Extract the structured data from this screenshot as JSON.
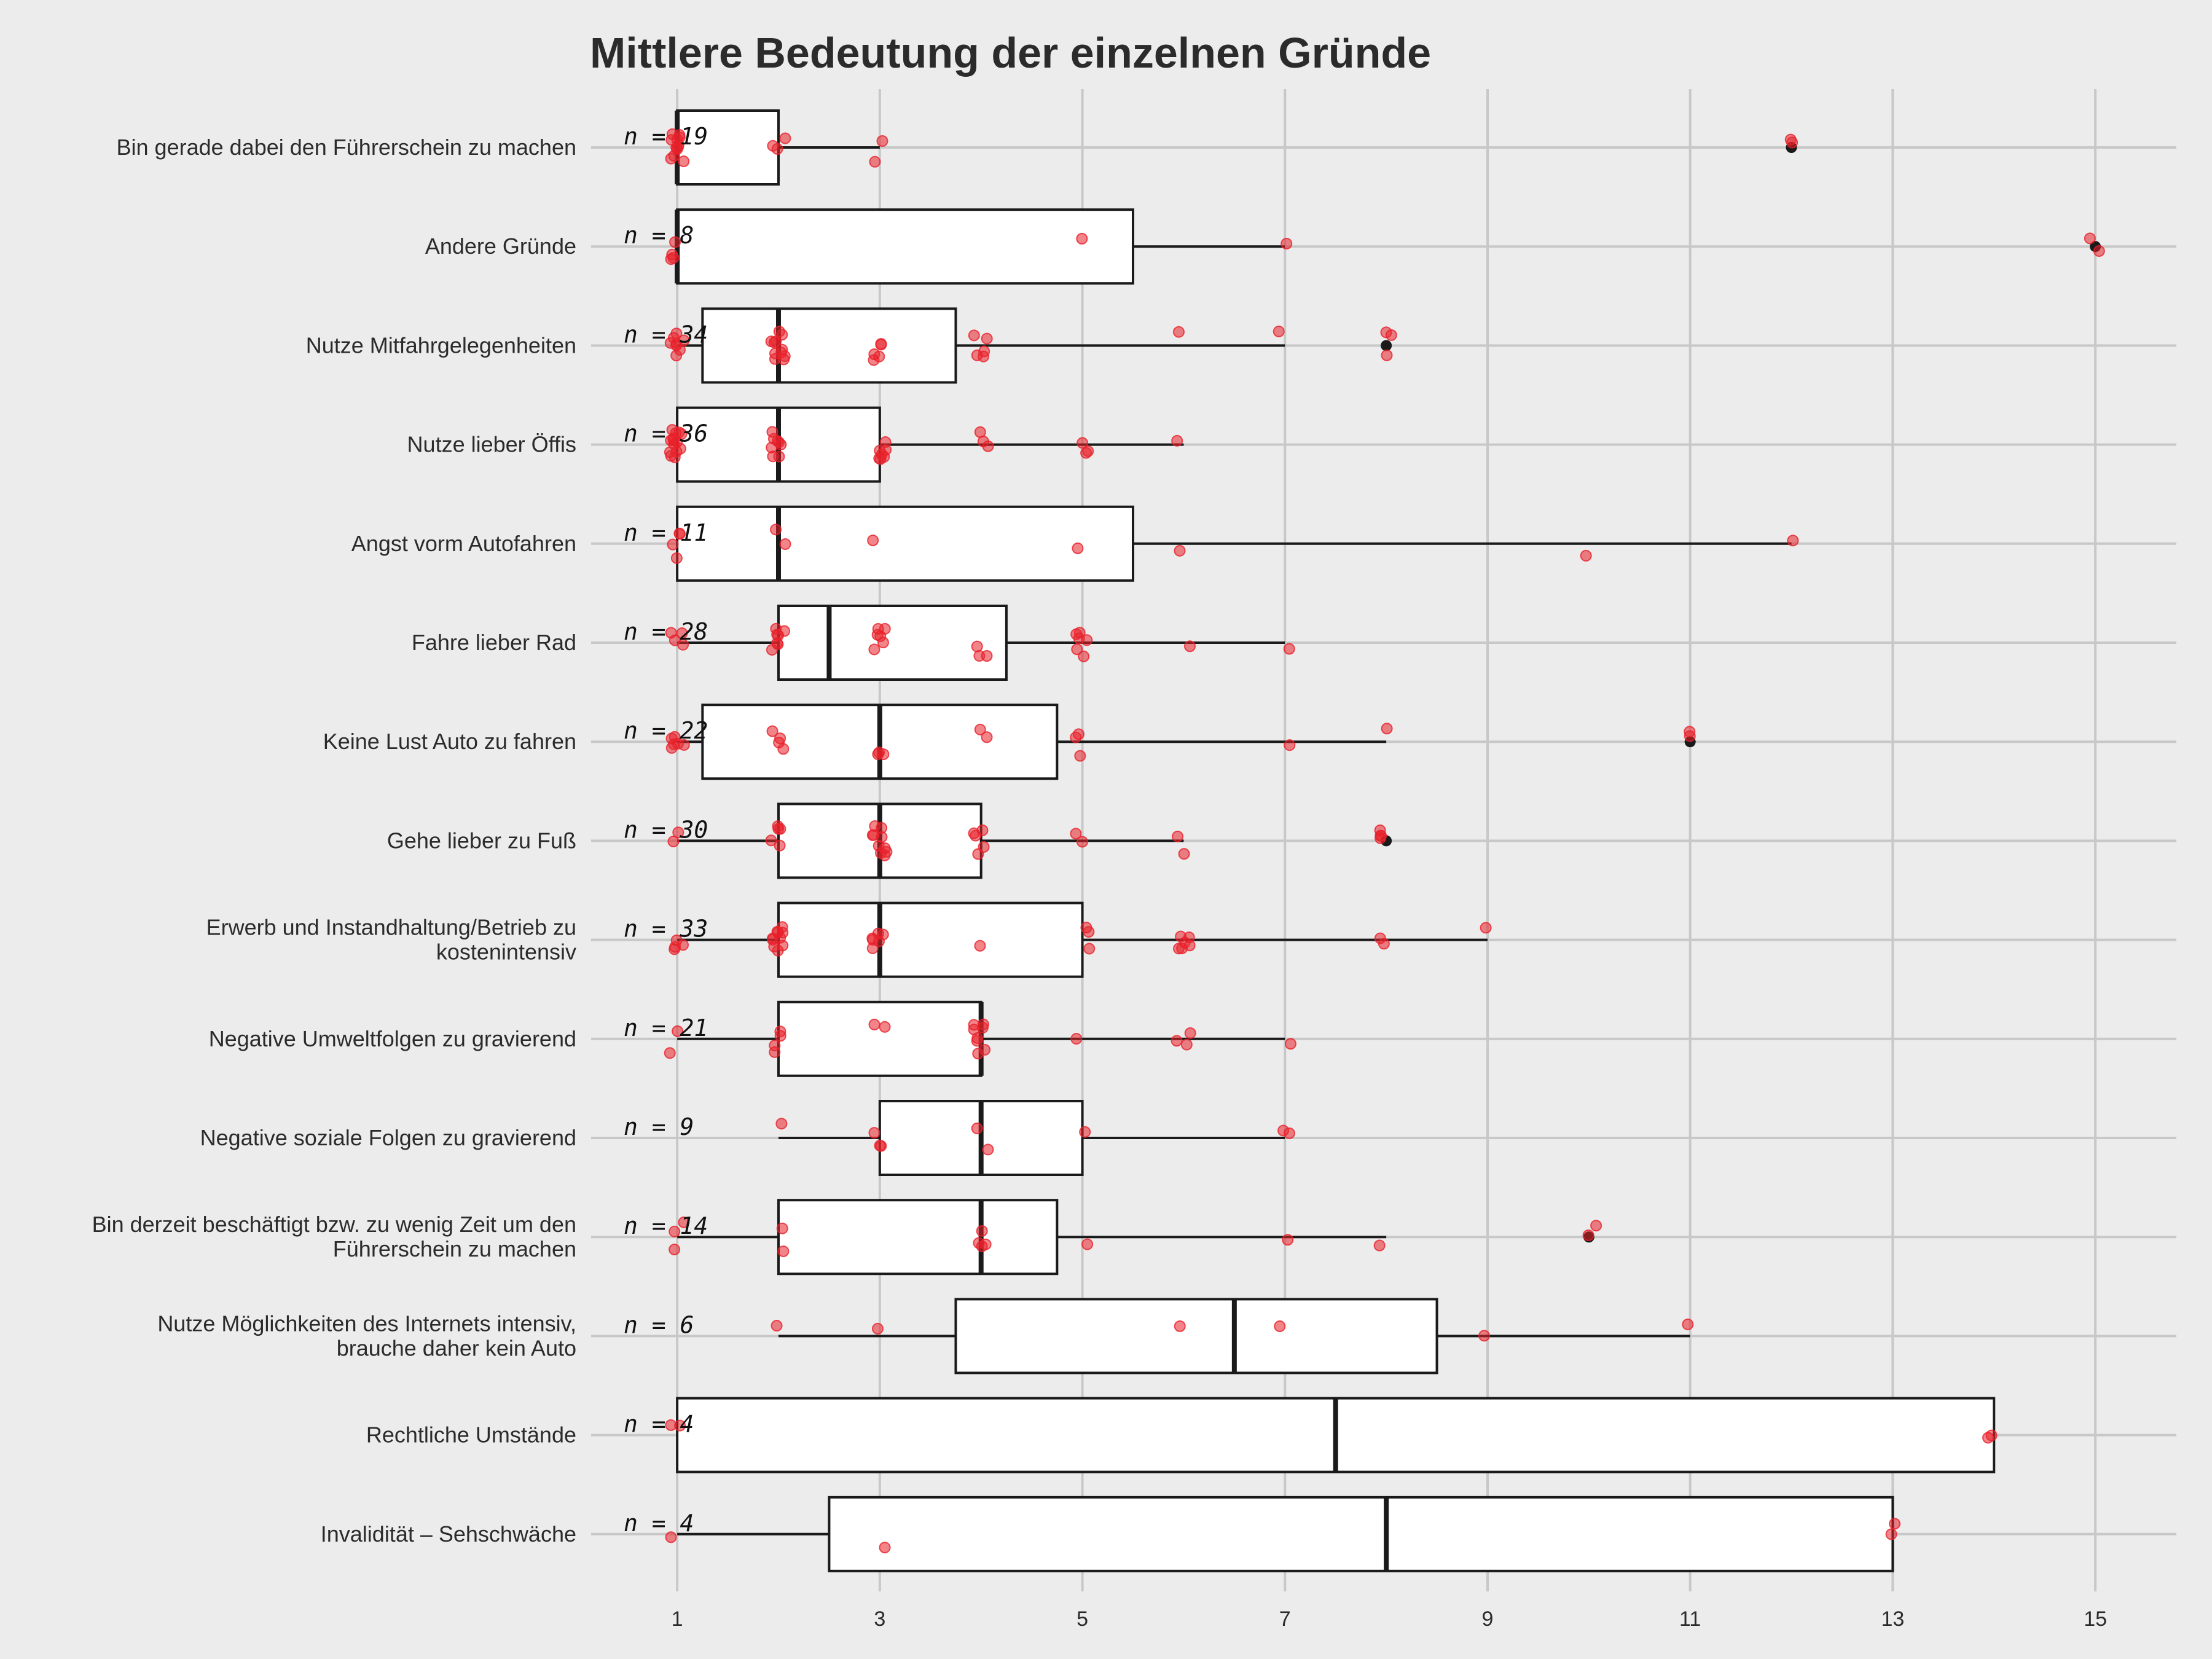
{
  "chart_data": {
    "type": "boxplot",
    "title": "Mittlere Bedeutung der einzelnen Gründe",
    "xlabel": "",
    "ylabel": "",
    "xlim": [
      0.15,
      15.8
    ],
    "x_ticks": [
      1,
      3,
      5,
      7,
      9,
      11,
      13,
      15
    ],
    "grid": true,
    "colors": {
      "background": "#ececec",
      "grid": "#c8c8c8",
      "box_fill": "#ffffff",
      "box_stroke": "#1a1a1a",
      "points": "#e8202a",
      "outliers": "#1a1a1a"
    },
    "categories": [
      {
        "label": [
          "Bin gerade dabei den Führerschein zu machen"
        ],
        "n_label": "n = 19",
        "whisker_low": 1,
        "q1": 1,
        "median": 1,
        "q3": 2,
        "whisker_high": 3,
        "outliers": [
          12
        ],
        "points": [
          1,
          1,
          1,
          1,
          1,
          1,
          1,
          1,
          1,
          1,
          1,
          1,
          2,
          2,
          2,
          3,
          3,
          12,
          12
        ]
      },
      {
        "label": [
          "Andere Gründe"
        ],
        "n_label": "n = 8",
        "whisker_low": 1,
        "q1": 1,
        "median": 1,
        "q3": 5.5,
        "whisker_high": 7,
        "outliers": [
          15
        ],
        "points": [
          1,
          1,
          1,
          1,
          5,
          7,
          15,
          15
        ]
      },
      {
        "label": [
          "Nutze Mitfahrgelegenheiten"
        ],
        "n_label": "n = 34",
        "whisker_low": 1,
        "q1": 1.25,
        "median": 2,
        "q3": 3.75,
        "whisker_high": 7,
        "outliers": [
          8
        ],
        "points": [
          1,
          1,
          1,
          1,
          1,
          1,
          1,
          1,
          2,
          2,
          2,
          2,
          2,
          2,
          2,
          2,
          2,
          2,
          2,
          3,
          3,
          3,
          3,
          3,
          4,
          4,
          4,
          4,
          4,
          6,
          7,
          8,
          8,
          8
        ]
      },
      {
        "label": [
          "Nutze lieber Öffis"
        ],
        "n_label": "n = 36",
        "whisker_low": 1,
        "q1": 1,
        "median": 2,
        "q3": 3,
        "whisker_high": 6,
        "outliers": [],
        "points": [
          1,
          1,
          1,
          1,
          1,
          1,
          1,
          1,
          1,
          1,
          1,
          1,
          1,
          1,
          2,
          2,
          2,
          2,
          2,
          2,
          2,
          2,
          3,
          3,
          3,
          3,
          3,
          3,
          3,
          4,
          4,
          4,
          5,
          5,
          5,
          6
        ]
      },
      {
        "label": [
          "Angst vorm Autofahren"
        ],
        "n_label": "n = 11",
        "whisker_low": 1,
        "q1": 1,
        "median": 2,
        "q3": 5.5,
        "whisker_high": 12,
        "outliers": [],
        "points": [
          1,
          1,
          1,
          1,
          2,
          2,
          3,
          5,
          6,
          10,
          12
        ]
      },
      {
        "label": [
          "Fahre lieber Rad"
        ],
        "n_label": "n = 28",
        "whisker_low": 1,
        "q1": 2,
        "median": 2.5,
        "q3": 4.25,
        "whisker_high": 7,
        "outliers": [],
        "points": [
          1,
          1,
          1,
          1,
          2,
          2,
          2,
          2,
          2,
          2,
          2,
          3,
          3,
          3,
          3,
          3,
          3,
          4,
          4,
          4,
          5,
          5,
          5,
          5,
          5,
          5,
          6,
          7
        ]
      },
      {
        "label": [
          "Keine Lust Auto zu fahren"
        ],
        "n_label": "n = 22",
        "whisker_low": 1,
        "q1": 1.25,
        "median": 3,
        "q3": 4.75,
        "whisker_high": 8,
        "outliers": [
          11
        ],
        "points": [
          1,
          1,
          1,
          1,
          1,
          1,
          2,
          2,
          2,
          2,
          3,
          3,
          3,
          4,
          4,
          5,
          5,
          5,
          7,
          8,
          11,
          11
        ]
      },
      {
        "label": [
          "Gehe lieber zu Fuß"
        ],
        "n_label": "n = 30",
        "whisker_low": 1,
        "q1": 2,
        "median": 3,
        "q3": 4,
        "whisker_high": 6,
        "outliers": [
          8
        ],
        "points": [
          1,
          1,
          2,
          2,
          2,
          2,
          2,
          3,
          3,
          3,
          3,
          3,
          3,
          3,
          3,
          3,
          3,
          4,
          4,
          4,
          4,
          4,
          5,
          5,
          6,
          6,
          8,
          8,
          8,
          8
        ]
      },
      {
        "label": [
          "Erwerb und Instandhaltung/Betrieb zu",
          "kostenintensiv"
        ],
        "n_label": "n = 33",
        "whisker_low": 1,
        "q1": 2,
        "median": 3,
        "q3": 5,
        "whisker_high": 9,
        "outliers": [],
        "points": [
          1,
          1,
          1,
          1,
          2,
          2,
          2,
          2,
          2,
          2,
          2,
          2,
          2,
          2,
          3,
          3,
          3,
          3,
          3,
          3,
          4,
          5,
          5,
          5,
          6,
          6,
          6,
          6,
          6,
          6,
          8,
          8,
          9
        ]
      },
      {
        "label": [
          "Negative Umweltfolgen zu gravierend"
        ],
        "n_label": "n = 21",
        "whisker_low": 1,
        "q1": 2,
        "median": 4,
        "q3": 4,
        "whisker_high": 7,
        "outliers": [],
        "points": [
          1,
          1,
          2,
          2,
          2,
          2,
          3,
          3,
          4,
          4,
          4,
          4,
          4,
          4,
          4,
          4,
          5,
          6,
          6,
          6,
          7
        ]
      },
      {
        "label": [
          "Negative soziale Folgen zu gravierend"
        ],
        "n_label": "n = 9",
        "whisker_low": 2,
        "q1": 3,
        "median": 4,
        "q3": 5,
        "whisker_high": 7,
        "outliers": [],
        "points": [
          2,
          3,
          3,
          3,
          4,
          4,
          5,
          7,
          7
        ]
      },
      {
        "label": [
          "Bin derzeit beschäftigt bzw. zu wenig Zeit um den",
          "Führerschein zu machen"
        ],
        "n_label": "n = 14",
        "whisker_low": 1,
        "q1": 2,
        "median": 4,
        "q3": 4.75,
        "whisker_high": 8,
        "outliers": [
          10
        ],
        "points": [
          1,
          1,
          1,
          2,
          2,
          4,
          4,
          4,
          4,
          5,
          7,
          8,
          10,
          10
        ]
      },
      {
        "label": [
          "Nutze Möglichkeiten des Internets intensiv,",
          "brauche daher kein Auto"
        ],
        "n_label": "n = 6",
        "whisker_low": 2,
        "q1": 3.75,
        "median": 6.5,
        "q3": 8.5,
        "whisker_high": 11,
        "outliers": [],
        "points": [
          2,
          3,
          6,
          7,
          9,
          11
        ]
      },
      {
        "label": [
          "Rechtliche Umstände"
        ],
        "n_label": "n = 4",
        "whisker_low": 1,
        "q1": 1,
        "median": 7.5,
        "q3": 14,
        "whisker_high": 14,
        "outliers": [],
        "points": [
          1,
          1,
          14,
          14
        ]
      },
      {
        "label": [
          "Invalidität – Sehschwäche"
        ],
        "n_label": "n = 4",
        "whisker_low": 1,
        "q1": 2.5,
        "median": 8,
        "q3": 13,
        "whisker_high": 13,
        "outliers": [],
        "points": [
          1,
          3,
          13,
          13
        ]
      }
    ]
  }
}
